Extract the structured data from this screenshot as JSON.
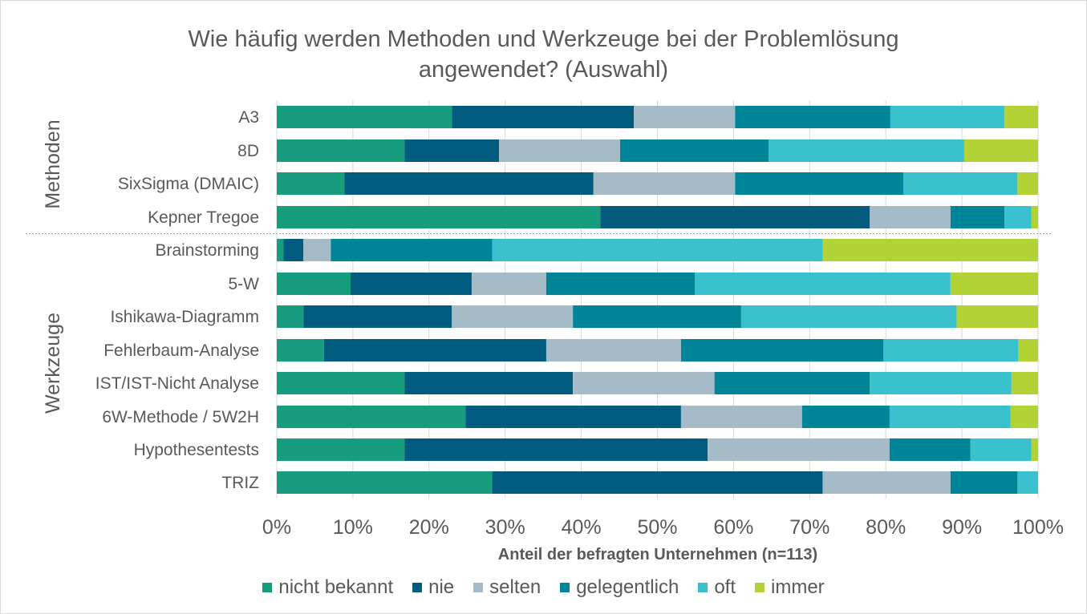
{
  "chart_data": {
    "type": "bar",
    "orientation": "horizontal",
    "stacked": "percent",
    "title": "Wie häufig werden Methoden und Werkzeuge bei der Problemlösung\nangewendet? (Auswahl)",
    "xlabel": "Anteil der befragten Unternehmen (n=113)",
    "xlim": [
      0,
      100
    ],
    "x_ticks": [
      "0%",
      "10%",
      "20%",
      "30%",
      "40%",
      "50%",
      "60%",
      "70%",
      "80%",
      "90%",
      "100%"
    ],
    "groups": [
      {
        "name": "Methoden",
        "categories": [
          "A3",
          "8D",
          "SixSigma (DMAIC)",
          "Kepner Tregoe"
        ]
      },
      {
        "name": "Werkzeuge",
        "categories": [
          "Brainstorming",
          "5-W",
          "Ishikawa-Diagramm",
          "Fehlerbaum-Analyse",
          "IST/IST-Nicht Analyse",
          "6W-Methode / 5W2H",
          "Hypothesentests",
          "TRIZ"
        ]
      }
    ],
    "categories": [
      "A3",
      "8D",
      "SixSigma (DMAIC)",
      "Kepner Tregoe",
      "Brainstorming",
      "5-W",
      "Ishikawa-Diagramm",
      "Fehlerbaum-Analyse",
      "IST/IST-Nicht Analyse",
      "6W-Methode / 5W2H",
      "Hypothesentests",
      "TRIZ"
    ],
    "series": [
      {
        "name": "nicht bekannt",
        "color": "#179c7d",
        "values": [
          23.0,
          16.8,
          8.9,
          42.5,
          0.9,
          9.7,
          3.5,
          6.2,
          16.8,
          24.8,
          16.8,
          28.3
        ]
      },
      {
        "name": "nie",
        "color": "#005b7f",
        "values": [
          23.9,
          12.4,
          32.7,
          35.4,
          2.6,
          15.9,
          19.5,
          29.2,
          22.1,
          28.3,
          39.8,
          43.4
        ]
      },
      {
        "name": "selten",
        "color": "#a6bbc8",
        "values": [
          13.3,
          15.9,
          18.6,
          10.6,
          3.6,
          9.8,
          15.9,
          17.7,
          18.6,
          15.9,
          23.9,
          16.8
        ]
      },
      {
        "name": "gelegentlich",
        "color": "#008598",
        "values": [
          20.4,
          19.5,
          22.1,
          7.1,
          21.2,
          19.5,
          22.1,
          26.6,
          20.4,
          11.5,
          10.6,
          8.8
        ]
      },
      {
        "name": "oft",
        "color": "#39c1cd",
        "values": [
          15.0,
          25.7,
          15.0,
          3.5,
          43.4,
          33.6,
          28.3,
          17.7,
          18.6,
          15.9,
          8.0,
          2.7
        ]
      },
      {
        "name": "immer",
        "color": "#b2d235",
        "values": [
          4.4,
          9.7,
          2.7,
          0.9,
          28.3,
          11.5,
          10.7,
          2.6,
          3.5,
          3.6,
          0.9,
          0.0
        ]
      }
    ],
    "grid": true,
    "legend_position": "bottom"
  }
}
